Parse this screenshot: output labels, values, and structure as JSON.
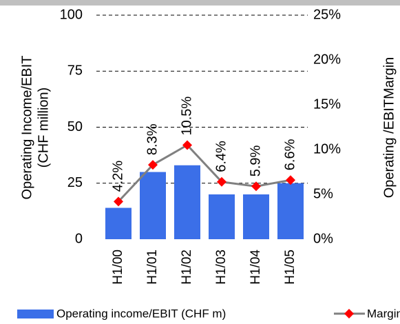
{
  "chart_data": {
    "type": "bar",
    "ylabel": [
      "Operating Income/EBIT",
      "(CHF million)"
    ],
    "y2label": "Operating /EBITMargin",
    "categories": [
      "H1/00",
      "H1/01",
      "H1/02",
      "H1/03",
      "H1/04",
      "H1/05"
    ],
    "series": [
      {
        "name": "Operating income/EBIT (CHF m)",
        "color": "#3b6fe8",
        "values": [
          14,
          30,
          33,
          20,
          20,
          25
        ]
      },
      {
        "name": "Margin",
        "color": "#808080",
        "marker_color": "#ff0000",
        "axis": "y2",
        "type": "line",
        "values": [
          4.2,
          8.3,
          10.5,
          6.4,
          5.9,
          6.6
        ],
        "value_labels": [
          "4.2%",
          "8.3%",
          "10.5%",
          "6.4%",
          "5.9%",
          "6.6%"
        ]
      }
    ],
    "ylim": [
      0,
      100
    ],
    "yticks": [
      0,
      25,
      50,
      75,
      100
    ],
    "y2lim": [
      0,
      25
    ],
    "y2ticks": [
      {
        "value": 0,
        "label": "0%"
      },
      {
        "value": 5,
        "label": "5%"
      },
      {
        "value": 10,
        "label": "10%"
      },
      {
        "value": 15,
        "label": "15%"
      },
      {
        "value": 20,
        "label": "20%"
      },
      {
        "value": 25,
        "label": "25%"
      }
    ],
    "grid": true
  }
}
